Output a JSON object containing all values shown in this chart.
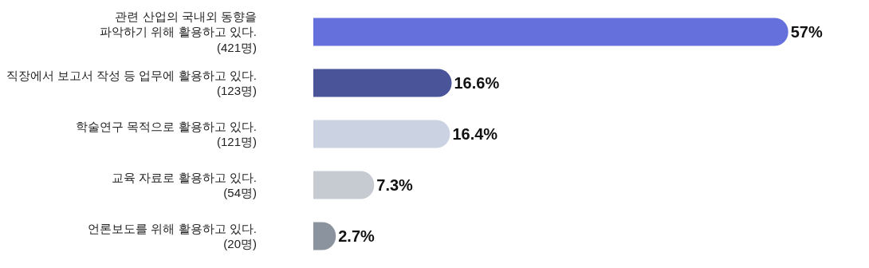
{
  "chart_data": {
    "type": "bar",
    "orientation": "horizontal",
    "categories": [
      "관련 산업의 국내외 동향을\n파악하기 위해 활용하고 있다.\n(421명)",
      "직장에서 보고서 작성 등 업무에 활용하고 있다.\n(123명)",
      "학술연구 목적으로 활용하고 있다.\n(121명)",
      "교육 자료로 활용하고 있다.\n(54명)",
      "언론보도를 위해 활용하고 있다.\n(20명)"
    ],
    "values": [
      57,
      16.6,
      16.4,
      7.3,
      2.7
    ],
    "value_labels": [
      "57%",
      "16.6%",
      "16.4%",
      "7.3%",
      "2.7%"
    ],
    "colors": [
      "#6670dc",
      "#4a5499",
      "#cbd2e2",
      "#c6cad1",
      "#8a939e"
    ],
    "grid": false,
    "legend": false
  }
}
